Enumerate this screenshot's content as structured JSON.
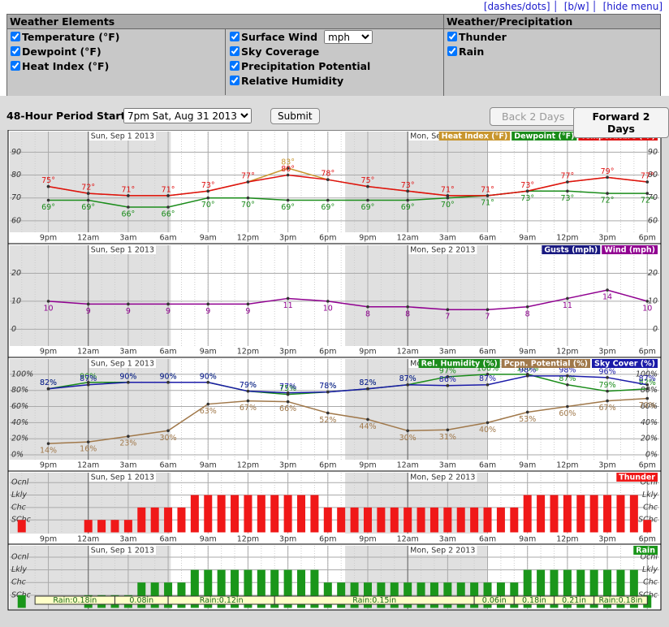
{
  "header": {
    "links": [
      "[dashes/dots]",
      "[b/w]",
      "[hide menu]"
    ]
  },
  "menu": {
    "sections": [
      {
        "title": "Weather Elements",
        "columns": [
          [
            "Temperature (°F)",
            "Dewpoint (°F)",
            "Heat Index (°F)"
          ],
          [
            "Surface Wind",
            "Sky Coverage",
            "Precipitation Potential",
            "Relative Humidity"
          ]
        ]
      },
      {
        "title": "Weather/Precipitation",
        "columns": [
          [
            "Thunder",
            "Rain"
          ]
        ]
      }
    ],
    "wind_unit": "mph"
  },
  "controls": {
    "period_label": "48-Hour Period Starting:",
    "period": "7pm Sat, Aug 31 2013",
    "submit": "Submit",
    "back": "Back 2 Days",
    "forward": "Forward 2 Days"
  },
  "time_axis": {
    "xlim": [
      -0.9,
      47.9
    ],
    "xticks": [
      {
        "value": 2,
        "label": "9pm"
      },
      {
        "value": 5,
        "label": "12am"
      },
      {
        "value": 8,
        "label": "3am"
      },
      {
        "value": 11,
        "label": "6am"
      },
      {
        "value": 14,
        "label": "9am"
      },
      {
        "value": 17,
        "label": "12pm"
      },
      {
        "value": 20,
        "label": "3pm"
      },
      {
        "value": 23,
        "label": "6pm"
      },
      {
        "value": 26,
        "label": "9pm"
      },
      {
        "value": 29,
        "label": "12am"
      },
      {
        "value": 32,
        "label": "3am"
      },
      {
        "value": 35,
        "label": "6am"
      },
      {
        "value": 38,
        "label": "9am"
      },
      {
        "value": 41,
        "label": "12pm"
      },
      {
        "value": 44,
        "label": "3pm"
      },
      {
        "value": 47,
        "label": "6pm"
      }
    ],
    "dates": [
      {
        "value": 5,
        "label": "Sun, Sep 1 2013"
      },
      {
        "value": 29,
        "label": "Mon, Sep 2 2013"
      }
    ]
  },
  "chart_data": [
    {
      "type": "line",
      "ylim": [
        55,
        99
      ],
      "yticks": [
        60,
        70,
        80,
        90
      ],
      "grid": true,
      "legend": "top-right",
      "x": [
        2,
        5,
        8,
        11,
        14,
        17,
        20,
        23,
        26,
        29,
        32,
        35,
        38,
        41,
        44,
        47
      ],
      "series": [
        {
          "name": "Heat Index (°F)",
          "color": "#c8962e",
          "values": [
            75,
            72,
            71,
            71,
            73,
            77,
            83,
            78,
            75,
            73,
            71,
            71,
            73,
            77,
            79,
            77
          ],
          "value_labels": [
            null,
            null,
            null,
            null,
            null,
            null,
            "83°",
            null,
            null,
            null,
            null,
            null,
            null,
            null,
            null,
            null
          ]
        },
        {
          "name": "Dewpoint (°F)",
          "color": "#1a8c1a",
          "values": [
            69,
            69,
            66,
            66,
            70,
            70,
            69,
            69,
            69,
            69,
            70,
            71,
            73,
            73,
            72,
            72
          ],
          "value_labels": [
            "69°",
            "69°",
            "66°",
            "66°",
            "70°",
            "70°",
            "69°",
            "69°",
            "69°",
            "69°",
            "70°",
            "71°",
            "73°",
            "73°",
            "72°",
            "72°"
          ]
        },
        {
          "name": "Temperature (°F)",
          "color": "#e01010",
          "values": [
            75,
            72,
            71,
            71,
            73,
            77,
            80,
            78,
            75,
            73,
            71,
            71,
            73,
            77,
            79,
            77
          ],
          "value_labels": [
            "75°",
            "72°",
            "71°",
            "71°",
            "73°",
            "77°",
            "80°",
            "78°",
            "75°",
            "73°",
            "71°",
            "71°",
            "73°",
            "77°",
            "79°",
            "77°"
          ]
        }
      ]
    },
    {
      "type": "line",
      "ylim": [
        -6,
        30
      ],
      "yticks": [
        0,
        10,
        20
      ],
      "grid": true,
      "legend": "top-right",
      "x": [
        2,
        5,
        8,
        11,
        14,
        17,
        20,
        23,
        26,
        29,
        32,
        35,
        38,
        41,
        44,
        47
      ],
      "series": [
        {
          "name": "Gusts (mph)",
          "color": "#1a1a80",
          "values": [
            null,
            null,
            null,
            null,
            null,
            null,
            null,
            null,
            null,
            null,
            null,
            null,
            null,
            null,
            null,
            null
          ]
        },
        {
          "name": "Wind (mph)",
          "color": "#900090",
          "values": [
            10,
            9,
            9,
            9,
            9,
            9,
            11,
            10,
            8,
            8,
            7,
            7,
            8,
            11,
            14,
            10
          ]
        }
      ]
    },
    {
      "type": "line",
      "ylim": [
        -6,
        119
      ],
      "yticks": [
        {
          "value": 0,
          "label": "0%"
        },
        {
          "value": 20,
          "label": "20%"
        },
        {
          "value": 40,
          "label": "40%"
        },
        {
          "value": 60,
          "label": "60%"
        },
        {
          "value": 80,
          "label": "80%"
        },
        {
          "value": 100,
          "label": "100%"
        }
      ],
      "grid": true,
      "legend": "top-right",
      "x": [
        2,
        5,
        8,
        11,
        14,
        17,
        20,
        23,
        26,
        29,
        32,
        35,
        38,
        41,
        44,
        47
      ],
      "series": [
        {
          "name": "Rel. Humidity (%)",
          "color": "#1a8c1a",
          "values": [
            82,
            90,
            90,
            90,
            90,
            79,
            75,
            78,
            82,
            87,
            97,
            100,
            100,
            87,
            79,
            82
          ],
          "value_labels": [
            "82%",
            "90%",
            "90%",
            "90%",
            "90%",
            "79%",
            "75%",
            "78%",
            "82%",
            "87%",
            "97%",
            "100%",
            "100%",
            "87%",
            "79%",
            "82%"
          ]
        },
        {
          "name": "Pcpn. Potential (%)",
          "color": "#a0784a",
          "values": [
            14,
            16,
            23,
            30,
            63,
            67,
            66,
            52,
            44,
            30,
            31,
            40,
            53,
            60,
            67,
            70
          ],
          "value_labels": [
            "14%",
            "16%",
            "23%",
            "30%",
            "63%",
            "67%",
            "66%",
            "52%",
            "44%",
            "30%",
            "31%",
            "40%",
            "53%",
            "60%",
            "67%",
            "70%"
          ]
        },
        {
          "name": "Sky Cover (%)",
          "color": "#1a1aa8",
          "values": [
            82,
            87,
            90,
            90,
            90,
            79,
            77,
            78,
            82,
            87,
            86,
            87,
            98,
            98,
            96,
            87
          ],
          "value_labels": [
            "82%",
            "87%",
            "90%",
            "90%",
            "90%",
            "79%",
            "77%",
            "78%",
            "82%",
            "87%",
            "86%",
            "87%",
            "98%",
            "98%",
            "96%",
            "87%"
          ]
        }
      ]
    },
    {
      "type": "bar",
      "ylim": [
        -0.1,
        4.8
      ],
      "yticks": [
        {
          "value": 1,
          "label": "SChc"
        },
        {
          "value": 2,
          "label": "Chc"
        },
        {
          "value": 3,
          "label": "Lkly"
        },
        {
          "value": 4,
          "label": "Ocnl"
        }
      ],
      "grid": true,
      "legend": "top-right",
      "x": [
        0,
        1,
        2,
        3,
        4,
        5,
        6,
        7,
        8,
        9,
        10,
        11,
        12,
        13,
        14,
        15,
        16,
        17,
        18,
        19,
        20,
        21,
        22,
        23,
        24,
        25,
        26,
        27,
        28,
        29,
        30,
        31,
        32,
        33,
        34,
        35,
        36,
        37,
        38,
        39,
        40,
        41,
        42,
        43,
        44,
        45,
        46,
        47
      ],
      "series": [
        {
          "name": "Thunder",
          "color": "#f01818",
          "values": [
            1,
            0,
            0,
            0,
            0,
            1,
            1,
            1,
            1,
            2,
            2,
            2,
            2,
            3,
            3,
            3,
            3,
            3,
            3,
            3,
            3,
            3,
            3,
            2,
            2,
            2,
            2,
            2,
            2,
            2,
            2,
            2,
            2,
            2,
            2,
            2,
            2,
            2,
            3,
            3,
            3,
            3,
            3,
            3,
            3,
            3,
            3,
            1
          ]
        }
      ]
    },
    {
      "type": "bar",
      "ylim": [
        -0.1,
        4.9
      ],
      "yticks": [
        {
          "value": 1,
          "label": "SChc"
        },
        {
          "value": 2,
          "label": "Chc"
        },
        {
          "value": 3,
          "label": "Lkly"
        },
        {
          "value": 4,
          "label": "Ocnl"
        }
      ],
      "grid": true,
      "legend": "top-right",
      "x": [
        0,
        1,
        2,
        3,
        4,
        5,
        6,
        7,
        8,
        9,
        10,
        11,
        12,
        13,
        14,
        15,
        16,
        17,
        18,
        19,
        20,
        21,
        22,
        23,
        24,
        25,
        26,
        27,
        28,
        29,
        30,
        31,
        32,
        33,
        34,
        35,
        36,
        37,
        38,
        39,
        40,
        41,
        42,
        43,
        44,
        45,
        46,
        47
      ],
      "series": [
        {
          "name": "Rain",
          "color": "#1a961a",
          "values": [
            1,
            0,
            0,
            0,
            0,
            1,
            1,
            1,
            1,
            2,
            2,
            2,
            2,
            3,
            3,
            3,
            3,
            3,
            3,
            3,
            3,
            3,
            3,
            2,
            2,
            2,
            2,
            2,
            2,
            2,
            2,
            2,
            2,
            2,
            2,
            2,
            2,
            2,
            3,
            3,
            3,
            3,
            3,
            3,
            3,
            3,
            3,
            1
          ]
        }
      ],
      "amounts": {
        "ranges": [
          [
            1,
            7
          ],
          [
            7,
            11
          ],
          [
            11,
            19
          ],
          [
            19,
            34
          ],
          [
            34,
            37
          ],
          [
            37,
            40
          ],
          [
            40,
            43
          ],
          [
            43,
            47
          ]
        ],
        "values": [
          0.18,
          0.08,
          0.12,
          0.15,
          0.06,
          0.18,
          0.21,
          0.18
        ],
        "value_labels": [
          "Rain:0.18in",
          "0.08in",
          "Rain:0.12in",
          "Rain:0.15in",
          "0.06in",
          "0.18in",
          "0.21in",
          "Rain:0.18in"
        ]
      }
    }
  ]
}
